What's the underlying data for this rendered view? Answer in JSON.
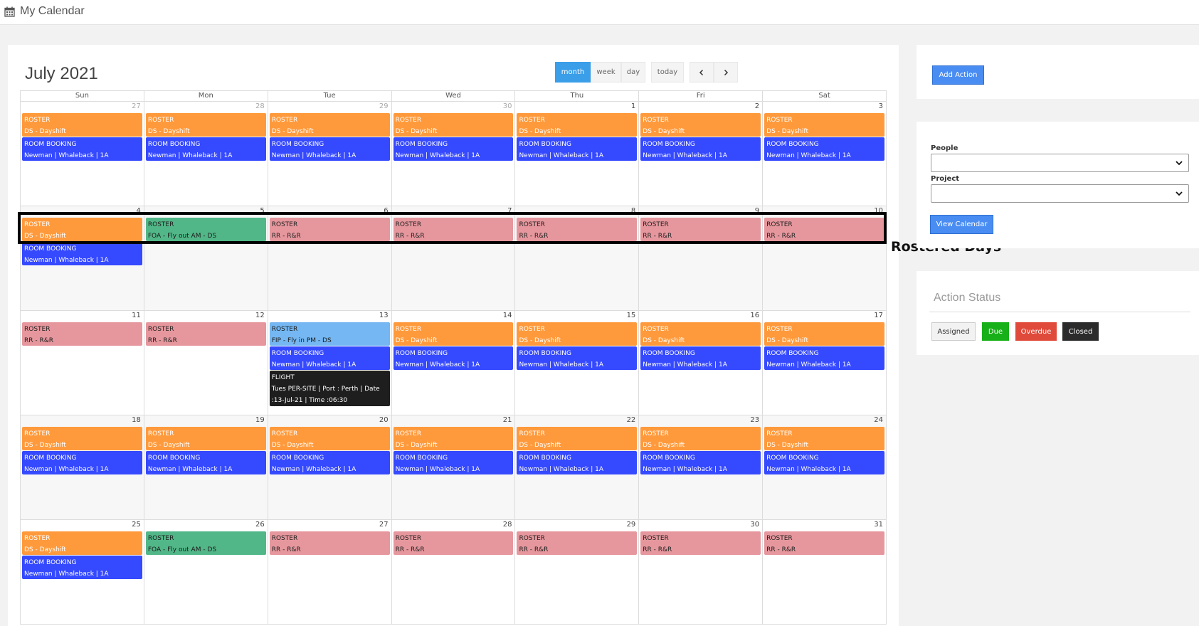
{
  "header": {
    "title": "My Calendar",
    "icon": "calendar-icon"
  },
  "calendar": {
    "month_title": "July 2021",
    "views": [
      "month",
      "week",
      "day"
    ],
    "active_view": "month",
    "today_label": "today",
    "prev_icon": "chevron-left-icon",
    "next_icon": "chevron-right-icon",
    "weekdays": [
      "Sun",
      "Mon",
      "Tue",
      "Wed",
      "Thu",
      "Fri",
      "Sat"
    ],
    "weeks": [
      {
        "grey": false,
        "days": [
          {
            "n": "27",
            "other": true,
            "ev": [
              {
                "c": "orange",
                "l": [
                  "ROSTER",
                  "DS - Dayshift"
                ]
              },
              {
                "c": "blue",
                "l": [
                  "ROOM BOOKING",
                  "Newman | Whaleback | 1A"
                ]
              }
            ]
          },
          {
            "n": "28",
            "other": true,
            "ev": [
              {
                "c": "orange",
                "l": [
                  "ROSTER",
                  "DS - Dayshift"
                ]
              },
              {
                "c": "blue",
                "l": [
                  "ROOM BOOKING",
                  "Newman | Whaleback | 1A"
                ]
              }
            ]
          },
          {
            "n": "29",
            "other": true,
            "ev": [
              {
                "c": "orange",
                "l": [
                  "ROSTER",
                  "DS - Dayshift"
                ]
              },
              {
                "c": "blue",
                "l": [
                  "ROOM BOOKING",
                  "Newman | Whaleback | 1A"
                ]
              }
            ]
          },
          {
            "n": "30",
            "other": true,
            "ev": [
              {
                "c": "orange",
                "l": [
                  "ROSTER",
                  "DS - Dayshift"
                ]
              },
              {
                "c": "blue",
                "l": [
                  "ROOM BOOKING",
                  "Newman | Whaleback | 1A"
                ]
              }
            ]
          },
          {
            "n": "1",
            "other": false,
            "ev": [
              {
                "c": "orange",
                "l": [
                  "ROSTER",
                  "DS - Dayshift"
                ]
              },
              {
                "c": "blue",
                "l": [
                  "ROOM BOOKING",
                  "Newman | Whaleback | 1A"
                ]
              }
            ]
          },
          {
            "n": "2",
            "other": false,
            "ev": [
              {
                "c": "orange",
                "l": [
                  "ROSTER",
                  "DS - Dayshift"
                ]
              },
              {
                "c": "blue",
                "l": [
                  "ROOM BOOKING",
                  "Newman | Whaleback | 1A"
                ]
              }
            ]
          },
          {
            "n": "3",
            "other": false,
            "ev": [
              {
                "c": "orange",
                "l": [
                  "ROSTER",
                  "DS - Dayshift"
                ]
              },
              {
                "c": "blue",
                "l": [
                  "ROOM BOOKING",
                  "Newman | Whaleback | 1A"
                ]
              }
            ]
          }
        ]
      },
      {
        "grey": true,
        "days": [
          {
            "n": "4",
            "other": false,
            "ev": [
              {
                "c": "orange",
                "l": [
                  "ROSTER",
                  "DS - Dayshift"
                ]
              },
              {
                "c": "blue",
                "l": [
                  "ROOM BOOKING",
                  "Newman | Whaleback | 1A"
                ]
              }
            ]
          },
          {
            "n": "5",
            "other": false,
            "ev": [
              {
                "c": "green",
                "l": [
                  "ROSTER",
                  "FOA - Fly out AM - DS"
                ]
              }
            ]
          },
          {
            "n": "6",
            "other": false,
            "ev": [
              {
                "c": "pink",
                "l": [
                  "ROSTER",
                  "RR - R&R"
                ]
              }
            ]
          },
          {
            "n": "7",
            "other": false,
            "ev": [
              {
                "c": "pink",
                "l": [
                  "ROSTER",
                  "RR - R&R"
                ]
              }
            ]
          },
          {
            "n": "8",
            "other": false,
            "ev": [
              {
                "c": "pink",
                "l": [
                  "ROSTER",
                  "RR - R&R"
                ]
              }
            ]
          },
          {
            "n": "9",
            "other": false,
            "ev": [
              {
                "c": "pink",
                "l": [
                  "ROSTER",
                  "RR - R&R"
                ]
              }
            ]
          },
          {
            "n": "10",
            "other": false,
            "ev": [
              {
                "c": "pink",
                "l": [
                  "ROSTER",
                  "RR - R&R"
                ]
              }
            ]
          }
        ]
      },
      {
        "grey": false,
        "days": [
          {
            "n": "11",
            "other": false,
            "ev": [
              {
                "c": "pink",
                "l": [
                  "ROSTER",
                  "RR - R&R"
                ]
              }
            ]
          },
          {
            "n": "12",
            "other": false,
            "ev": [
              {
                "c": "pink",
                "l": [
                  "ROSTER",
                  "RR - R&R"
                ]
              }
            ]
          },
          {
            "n": "13",
            "other": false,
            "ev": [
              {
                "c": "lightblue",
                "l": [
                  "ROSTER",
                  "FIP - Fly in PM - DS"
                ]
              },
              {
                "c": "blue",
                "l": [
                  "ROOM BOOKING",
                  "Newman | Whaleback | 1A"
                ]
              },
              {
                "c": "black",
                "l": [
                  "FLIGHT",
                  "Tues PER-SITE | Port : Perth | Date :13-Jul-21 | Time :06:30"
                ]
              }
            ]
          },
          {
            "n": "14",
            "other": false,
            "ev": [
              {
                "c": "orange",
                "l": [
                  "ROSTER",
                  "DS - Dayshift"
                ]
              },
              {
                "c": "blue",
                "l": [
                  "ROOM BOOKING",
                  "Newman | Whaleback | 1A"
                ]
              }
            ]
          },
          {
            "n": "15",
            "other": false,
            "ev": [
              {
                "c": "orange",
                "l": [
                  "ROSTER",
                  "DS - Dayshift"
                ]
              },
              {
                "c": "blue",
                "l": [
                  "ROOM BOOKING",
                  "Newman | Whaleback | 1A"
                ]
              }
            ]
          },
          {
            "n": "16",
            "other": false,
            "ev": [
              {
                "c": "orange",
                "l": [
                  "ROSTER",
                  "DS - Dayshift"
                ]
              },
              {
                "c": "blue",
                "l": [
                  "ROOM BOOKING",
                  "Newman | Whaleback | 1A"
                ]
              }
            ]
          },
          {
            "n": "17",
            "other": false,
            "ev": [
              {
                "c": "orange",
                "l": [
                  "ROSTER",
                  "DS - Dayshift"
                ]
              },
              {
                "c": "blue",
                "l": [
                  "ROOM BOOKING",
                  "Newman | Whaleback | 1A"
                ]
              }
            ]
          }
        ]
      },
      {
        "grey": true,
        "days": [
          {
            "n": "18",
            "other": false,
            "ev": [
              {
                "c": "orange",
                "l": [
                  "ROSTER",
                  "DS - Dayshift"
                ]
              },
              {
                "c": "blue",
                "l": [
                  "ROOM BOOKING",
                  "Newman | Whaleback | 1A"
                ]
              }
            ]
          },
          {
            "n": "19",
            "other": false,
            "ev": [
              {
                "c": "orange",
                "l": [
                  "ROSTER",
                  "DS - Dayshift"
                ]
              },
              {
                "c": "blue",
                "l": [
                  "ROOM BOOKING",
                  "Newman | Whaleback | 1A"
                ]
              }
            ]
          },
          {
            "n": "20",
            "other": false,
            "ev": [
              {
                "c": "orange",
                "l": [
                  "ROSTER",
                  "DS - Dayshift"
                ]
              },
              {
                "c": "blue",
                "l": [
                  "ROOM BOOKING",
                  "Newman | Whaleback | 1A"
                ]
              }
            ]
          },
          {
            "n": "21",
            "other": false,
            "ev": [
              {
                "c": "orange",
                "l": [
                  "ROSTER",
                  "DS - Dayshift"
                ]
              },
              {
                "c": "blue",
                "l": [
                  "ROOM BOOKING",
                  "Newman | Whaleback | 1A"
                ]
              }
            ]
          },
          {
            "n": "22",
            "other": false,
            "ev": [
              {
                "c": "orange",
                "l": [
                  "ROSTER",
                  "DS - Dayshift"
                ]
              },
              {
                "c": "blue",
                "l": [
                  "ROOM BOOKING",
                  "Newman | Whaleback | 1A"
                ]
              }
            ]
          },
          {
            "n": "23",
            "other": false,
            "ev": [
              {
                "c": "orange",
                "l": [
                  "ROSTER",
                  "DS - Dayshift"
                ]
              },
              {
                "c": "blue",
                "l": [
                  "ROOM BOOKING",
                  "Newman | Whaleback | 1A"
                ]
              }
            ]
          },
          {
            "n": "24",
            "other": false,
            "ev": [
              {
                "c": "orange",
                "l": [
                  "ROSTER",
                  "DS - Dayshift"
                ]
              },
              {
                "c": "blue",
                "l": [
                  "ROOM BOOKING",
                  "Newman | Whaleback | 1A"
                ]
              }
            ]
          }
        ]
      },
      {
        "grey": false,
        "days": [
          {
            "n": "25",
            "other": false,
            "ev": [
              {
                "c": "orange",
                "l": [
                  "ROSTER",
                  "DS - Dayshift"
                ]
              },
              {
                "c": "blue",
                "l": [
                  "ROOM BOOKING",
                  "Newman | Whaleback | 1A"
                ]
              }
            ]
          },
          {
            "n": "26",
            "other": false,
            "ev": [
              {
                "c": "green",
                "l": [
                  "ROSTER",
                  "FOA - Fly out AM - DS"
                ]
              }
            ]
          },
          {
            "n": "27",
            "other": false,
            "ev": [
              {
                "c": "pink",
                "l": [
                  "ROSTER",
                  "RR - R&R"
                ]
              }
            ]
          },
          {
            "n": "28",
            "other": false,
            "ev": [
              {
                "c": "pink",
                "l": [
                  "ROSTER",
                  "RR - R&R"
                ]
              }
            ]
          },
          {
            "n": "29",
            "other": false,
            "ev": [
              {
                "c": "pink",
                "l": [
                  "ROSTER",
                  "RR - R&R"
                ]
              }
            ]
          },
          {
            "n": "30",
            "other": false,
            "ev": [
              {
                "c": "pink",
                "l": [
                  "ROSTER",
                  "RR - R&R"
                ]
              }
            ]
          },
          {
            "n": "31",
            "other": false,
            "ev": [
              {
                "c": "pink",
                "l": [
                  "ROSTER",
                  "RR - R&R"
                ]
              }
            ]
          }
        ]
      }
    ]
  },
  "annotation": {
    "label": "Rostered Days"
  },
  "sidebar": {
    "add_action_label": "Add Action",
    "people_label": "People",
    "project_label": "Project",
    "view_calendar_label": "View Calendar",
    "status_title": "Action Status",
    "statuses": [
      {
        "label": "Assigned",
        "color": "#f2f2f2",
        "text": "#333333"
      },
      {
        "label": "Due",
        "color": "#18b018",
        "text": "#ffffff"
      },
      {
        "label": "Overdue",
        "color": "#e04a3a",
        "text": "#ffffff"
      },
      {
        "label": "Closed",
        "color": "#2b2b2b",
        "text": "#ffffff"
      }
    ]
  },
  "colors": {
    "accent": "#3a9ee8",
    "event_orange": "#ff9a3c",
    "event_blue": "#3549ff",
    "event_green": "#52b788",
    "event_pink": "#e6979d",
    "event_lightblue": "#74b7f2",
    "event_black": "#1e1e1e"
  }
}
